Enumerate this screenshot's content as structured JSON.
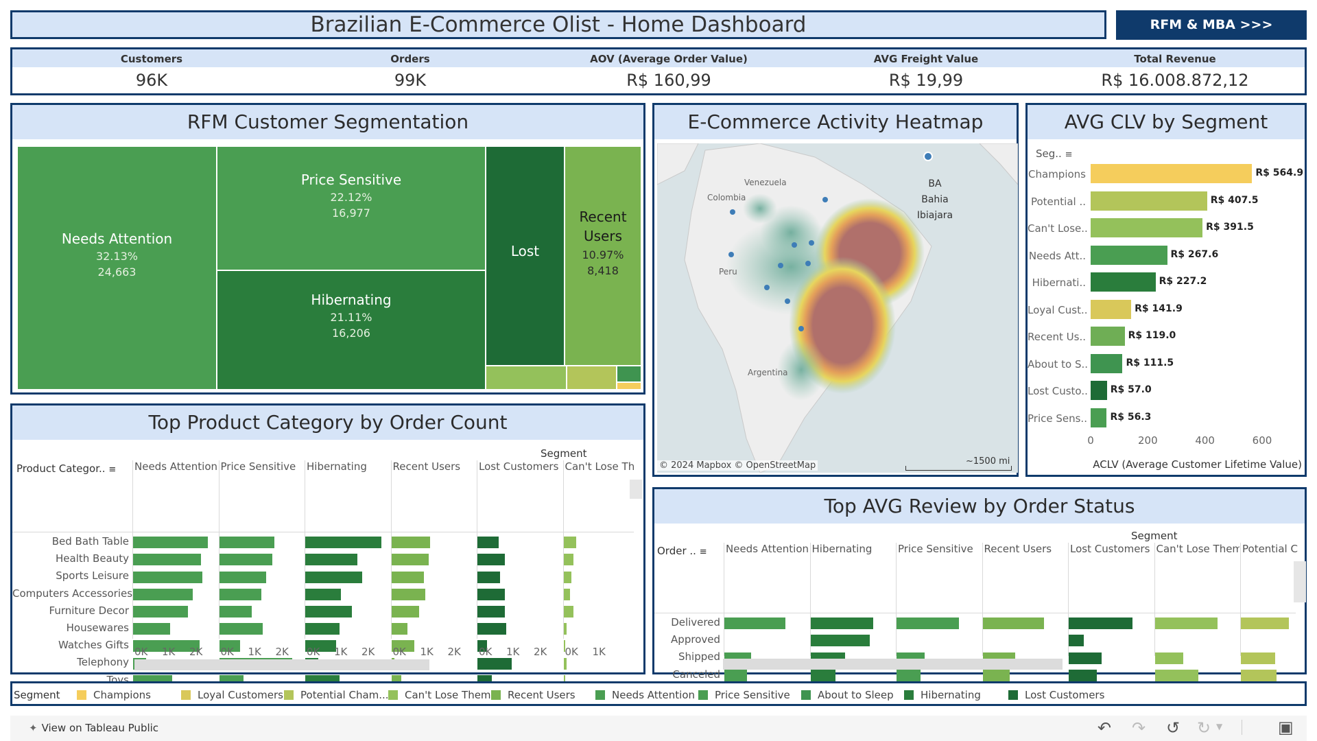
{
  "header": {
    "title": "Brazilian E-Commerce Olist - Home Dashboard",
    "link_label": "RFM & MBA >>>"
  },
  "kpis": [
    {
      "label": "Customers",
      "value": "96K"
    },
    {
      "label": "Orders",
      "value": "99K"
    },
    {
      "label": "AOV (Average Order Value)",
      "value": "R$ 160,99"
    },
    {
      "label": "AVG Freight Value",
      "value": "R$ 19,99"
    },
    {
      "label": "Total Revenue",
      "value": "R$ 16.008.872,12"
    }
  ],
  "treemap": {
    "title": "RFM Customer Segmentation",
    "blocks": [
      {
        "name": "Needs Attention",
        "pct": "32.13%",
        "count": "24,663",
        "color": "#4a9e52"
      },
      {
        "name": "Price Sensitive",
        "pct": "22.12%",
        "count": "16,977",
        "color": "#4a9e52"
      },
      {
        "name": "Hibernating",
        "pct": "21.11%",
        "count": "16,206",
        "color": "#2a7d3c"
      },
      {
        "name": "Lost",
        "color": "#1e6b36"
      },
      {
        "name": "Recent Users",
        "pct": "10.97%",
        "count": "8,418",
        "color": "#7ab350"
      }
    ]
  },
  "heatmap": {
    "title": "E-Commerce Activity Heatmap",
    "labels": [
      "Venezuela",
      "Colombia",
      "Peru",
      "Argentina"
    ],
    "tooltip": [
      "BA",
      "Bahia",
      "Ibiajara"
    ],
    "attribution": "© 2024 Mapbox  © OpenStreetMap",
    "scale": "~1500 mi"
  },
  "clv": {
    "title": "AVG CLV by Segment",
    "header": "Seg..",
    "axis_label": "ACLV (Average Customer Lifetime Value)",
    "ticks": [
      "0",
      "200",
      "400",
      "600"
    ],
    "max": 600,
    "rows": [
      {
        "label": "Champions",
        "value": 564.9,
        "text": "R$ 564.9",
        "color": "#f5cd5c"
      },
      {
        "label": "Potential ..",
        "value": 407.5,
        "text": "R$ 407.5",
        "color": "#b3c55a"
      },
      {
        "label": "Can't Lose..",
        "value": 391.5,
        "text": "R$ 391.5",
        "color": "#94c15b"
      },
      {
        "label": "Needs Att..",
        "value": 267.6,
        "text": "R$ 267.6",
        "color": "#4a9e52"
      },
      {
        "label": "Hibernati..",
        "value": 227.2,
        "text": "R$ 227.2",
        "color": "#2a7d3c"
      },
      {
        "label": "Loyal Cust..",
        "value": 141.9,
        "text": "R$ 141.9",
        "color": "#d9c85a"
      },
      {
        "label": "Recent Us..",
        "value": 119.0,
        "text": "R$ 119.0",
        "color": "#6fae55"
      },
      {
        "label": "About to S..",
        "value": 111.5,
        "text": "R$ 111.5",
        "color": "#3f9450"
      },
      {
        "label": "Lost Custo..",
        "value": 57.0,
        "text": "R$ 57.0",
        "color": "#1e6b36"
      },
      {
        "label": "Price Sens..",
        "value": 56.3,
        "text": "R$ 56.3",
        "color": "#4a9e52"
      }
    ]
  },
  "products": {
    "title": "Top Product Category by Order Count",
    "segment_label": "Segment",
    "row_header": "Product Categor..",
    "columns": [
      {
        "name": "Needs Attention",
        "color": "#4a9e52",
        "ticks": [
          "0K",
          "1K",
          "2K"
        ],
        "values": [
          2300,
          2100,
          2150,
          1850,
          1700,
          1150,
          2050,
          400,
          1200
        ]
      },
      {
        "name": "Price Sensitive",
        "color": "#4a9e52",
        "ticks": [
          "0K",
          "1K",
          "2K"
        ],
        "values": [
          1700,
          1650,
          1450,
          1300,
          1000,
          1350,
          650,
          2250,
          750
        ]
      },
      {
        "name": "Hibernating",
        "color": "#2a7d3c",
        "ticks": [
          "0K",
          "1K",
          "2K"
        ],
        "values": [
          2350,
          1600,
          1750,
          1100,
          1450,
          1050,
          950,
          400,
          1050
        ]
      },
      {
        "name": "Recent Users",
        "color": "#7ab350",
        "ticks": [
          "0K",
          "1K",
          "2K"
        ],
        "values": [
          1200,
          1150,
          1000,
          1050,
          850,
          500,
          700,
          100,
          300
        ]
      },
      {
        "name": "Lost Customers",
        "color": "#1e6b36",
        "ticks": [
          "0K",
          "1K",
          "2K"
        ],
        "values": [
          650,
          850,
          700,
          850,
          850,
          900,
          300,
          1050,
          450
        ]
      },
      {
        "name": "Can't Lose Th",
        "color": "#94c15b",
        "ticks": [
          "0K",
          "1K"
        ],
        "values": [
          400,
          300,
          250,
          200,
          300,
          100,
          50,
          100,
          50
        ]
      }
    ],
    "rows": [
      "Bed Bath Table",
      "Health Beauty",
      "Sports Leisure",
      "Computers Accessories",
      "Furniture Decor",
      "Housewares",
      "Watches Gifts",
      "Telephony",
      "Toys"
    ]
  },
  "reviews": {
    "title": "Top AVG Review by Order Status",
    "segment_label": "Segment",
    "row_header": "Order ..",
    "columns": [
      {
        "name": "Needs Attention",
        "color": "#4a9e52",
        "ticks": [
          "0",
          "2",
          "4"
        ],
        "values": [
          4.1,
          0,
          1.8,
          1.5
        ]
      },
      {
        "name": "Hibernating",
        "color": "#2a7d3c",
        "ticks": [
          "0",
          "2",
          "4"
        ],
        "values": [
          4.2,
          4.0,
          2.3,
          1.7
        ]
      },
      {
        "name": "Price Sensitive",
        "color": "#4a9e52",
        "ticks": [
          "0",
          "2",
          "4"
        ],
        "values": [
          4.2,
          0,
          1.9,
          1.6
        ]
      },
      {
        "name": "Recent Users",
        "color": "#7ab350",
        "ticks": [
          "0",
          "2",
          "4"
        ],
        "values": [
          4.1,
          0,
          2.2,
          1.8
        ]
      },
      {
        "name": "Lost Customers",
        "color": "#1e6b36",
        "ticks": [
          "0",
          "2",
          "4"
        ],
        "values": [
          4.3,
          1.0,
          2.2,
          1.9
        ]
      },
      {
        "name": "Can't Lose Them",
        "color": "#94c15b",
        "ticks": [
          "0",
          "2",
          "4"
        ],
        "values": [
          4.2,
          0,
          1.9,
          2.9
        ]
      },
      {
        "name": "Potential C",
        "color": "#b3c55a",
        "ticks": [
          "0",
          "2"
        ],
        "values": [
          3.2,
          0,
          2.3,
          2.4
        ]
      }
    ],
    "rows": [
      "Delivered",
      "Approved",
      "Shipped",
      "Canceled"
    ]
  },
  "legend": {
    "label": "Segment",
    "items": [
      {
        "name": "Champions",
        "color": "#f5cd5c"
      },
      {
        "name": "Loyal Customers",
        "color": "#d9c85a"
      },
      {
        "name": "Potential Cham...",
        "color": "#b3c55a"
      },
      {
        "name": "Can't Lose Them",
        "color": "#94c15b"
      },
      {
        "name": "Recent Users",
        "color": "#7ab350"
      },
      {
        "name": "Needs Attention",
        "color": "#4a9e52"
      },
      {
        "name": "Price Sensitive",
        "color": "#4a9e52"
      },
      {
        "name": "About to Sleep",
        "color": "#3f9450"
      },
      {
        "name": "Hibernating",
        "color": "#2a7d3c"
      },
      {
        "name": "Lost Customers",
        "color": "#1e6b36"
      }
    ]
  },
  "footer": {
    "view_label": "View on Tableau Public"
  }
}
